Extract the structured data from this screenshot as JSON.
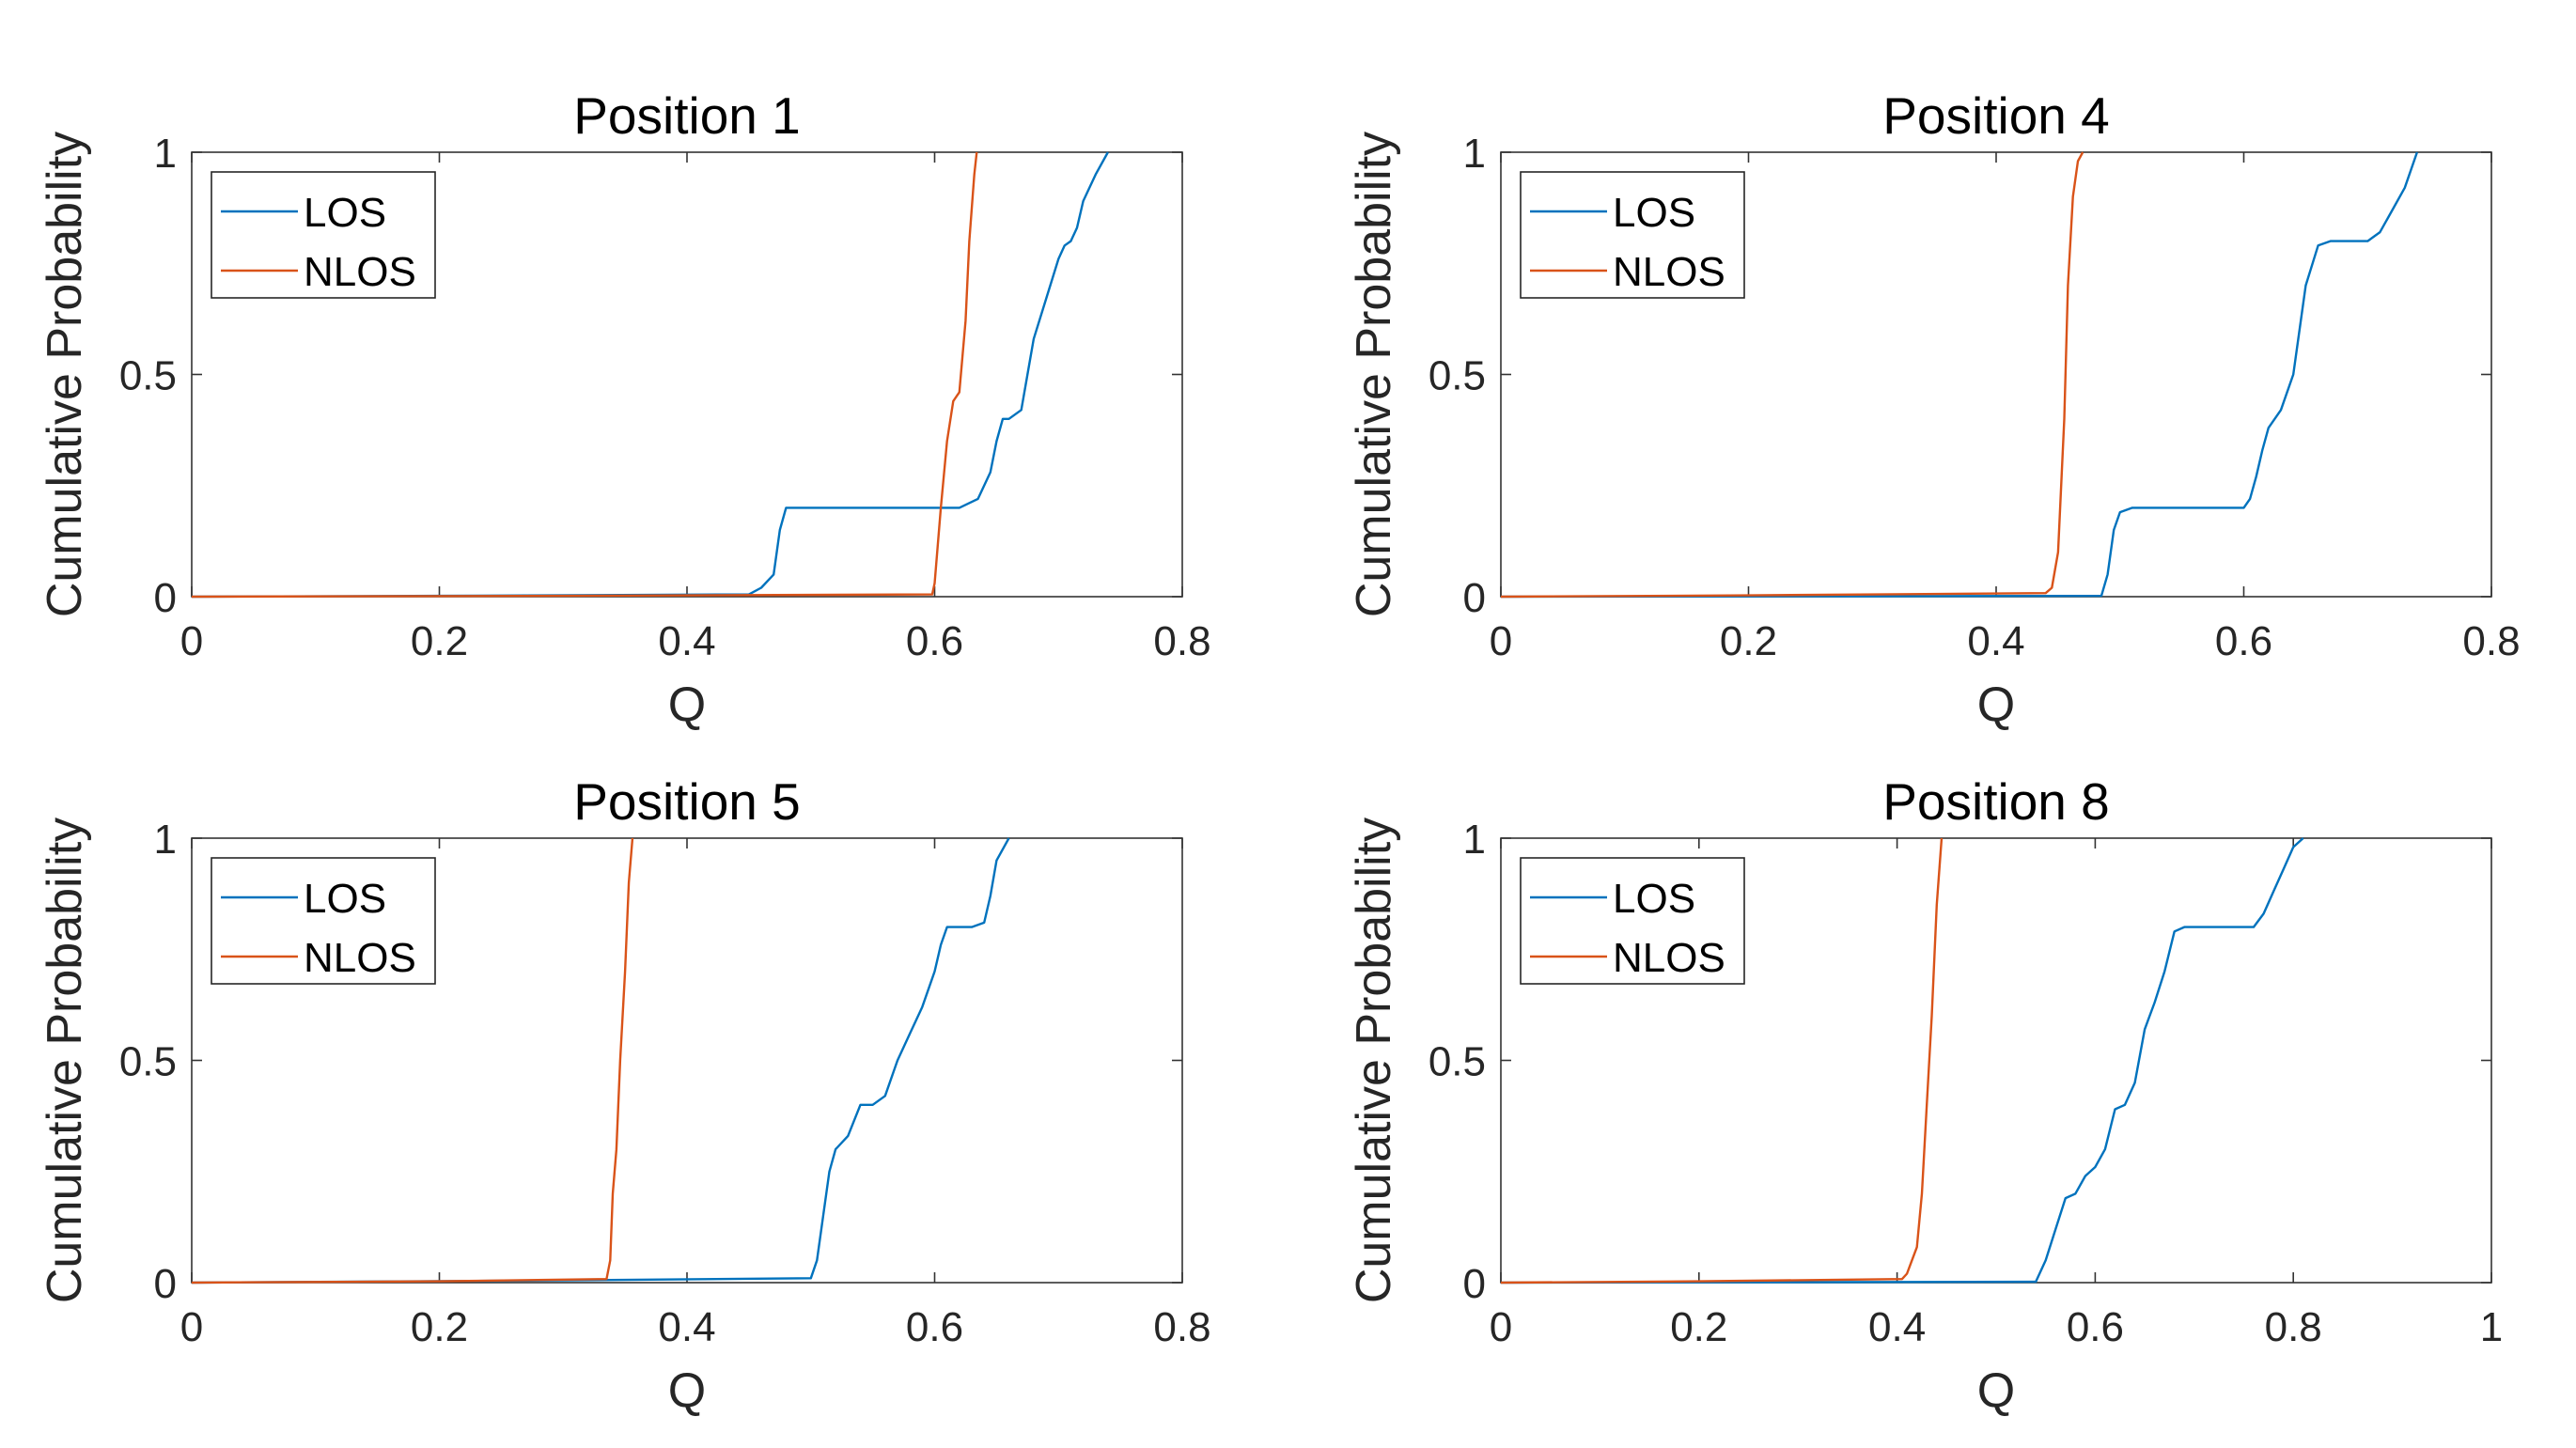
{
  "chart_data": [
    {
      "type": "line",
      "title": "Position 1",
      "xlabel": "Q",
      "ylabel": "Cumulative Probability",
      "xlim": [
        0,
        0.8
      ],
      "ylim": [
        0,
        1
      ],
      "xticks": [
        0,
        0.2,
        0.4,
        0.6,
        0.8
      ],
      "xtick_labels": [
        "0",
        "0.2",
        "0.4",
        "0.6",
        "0.8"
      ],
      "yticks": [
        0,
        0.5,
        1
      ],
      "ytick_labels": [
        "0",
        "0.5",
        "1"
      ],
      "legend_position": "top-left",
      "series": [
        {
          "name": "LOS",
          "color": "#0072BD",
          "x": [
            0,
            0.2,
            0.45,
            0.46,
            0.47,
            0.475,
            0.48,
            0.5,
            0.58,
            0.62,
            0.635,
            0.645,
            0.65,
            0.655,
            0.66,
            0.67,
            0.675,
            0.68,
            0.69,
            0.7,
            0.705,
            0.71,
            0.715,
            0.72,
            0.73,
            0.74
          ],
          "y": [
            0,
            0.002,
            0.005,
            0.02,
            0.05,
            0.15,
            0.2,
            0.2,
            0.2,
            0.2,
            0.22,
            0.28,
            0.35,
            0.4,
            0.4,
            0.42,
            0.5,
            0.58,
            0.67,
            0.76,
            0.79,
            0.8,
            0.83,
            0.89,
            0.95,
            1.0
          ]
        },
        {
          "name": "NLOS",
          "color": "#D95319",
          "x": [
            0,
            0.3,
            0.598,
            0.6,
            0.605,
            0.61,
            0.615,
            0.62,
            0.625,
            0.628,
            0.632,
            0.634
          ],
          "y": [
            0,
            0.002,
            0.005,
            0.03,
            0.2,
            0.35,
            0.44,
            0.46,
            0.62,
            0.8,
            0.95,
            1.0
          ]
        }
      ]
    },
    {
      "type": "line",
      "title": "Position 4",
      "xlabel": "Q",
      "ylabel": "Cumulative Probability",
      "xlim": [
        0,
        0.8
      ],
      "ylim": [
        0,
        1
      ],
      "xticks": [
        0,
        0.2,
        0.4,
        0.6,
        0.8
      ],
      "xtick_labels": [
        "0",
        "0.2",
        "0.4",
        "0.6",
        "0.8"
      ],
      "yticks": [
        0,
        0.5,
        1
      ],
      "ytick_labels": [
        "0",
        "0.5",
        "1"
      ],
      "legend_position": "top-left",
      "series": [
        {
          "name": "LOS",
          "color": "#0072BD",
          "x": [
            0,
            0.3,
            0.485,
            0.49,
            0.495,
            0.5,
            0.51,
            0.53,
            0.6,
            0.605,
            0.61,
            0.615,
            0.62,
            0.63,
            0.64,
            0.645,
            0.65,
            0.66,
            0.67,
            0.7,
            0.705,
            0.71,
            0.72,
            0.73,
            0.74
          ],
          "y": [
            0,
            0.001,
            0.002,
            0.05,
            0.15,
            0.19,
            0.2,
            0.2,
            0.2,
            0.22,
            0.27,
            0.33,
            0.38,
            0.42,
            0.5,
            0.6,
            0.7,
            0.79,
            0.8,
            0.8,
            0.81,
            0.82,
            0.87,
            0.92,
            1.0
          ]
        },
        {
          "name": "NLOS",
          "color": "#D95319",
          "x": [
            0,
            0.2,
            0.44,
            0.445,
            0.45,
            0.455,
            0.458,
            0.462,
            0.466,
            0.47
          ],
          "y": [
            0,
            0.003,
            0.008,
            0.02,
            0.1,
            0.4,
            0.7,
            0.9,
            0.98,
            1.0
          ]
        }
      ]
    },
    {
      "type": "line",
      "title": "Position 5",
      "xlabel": "Q",
      "ylabel": "Cumulative Probability",
      "xlim": [
        0,
        0.8
      ],
      "ylim": [
        0,
        1
      ],
      "xticks": [
        0,
        0.2,
        0.4,
        0.6,
        0.8
      ],
      "xtick_labels": [
        "0",
        "0.2",
        "0.4",
        "0.6",
        "0.8"
      ],
      "yticks": [
        0,
        0.5,
        1
      ],
      "ytick_labels": [
        "0",
        "0.5",
        "1"
      ],
      "legend_position": "top-left",
      "series": [
        {
          "name": "LOS",
          "color": "#0072BD",
          "x": [
            0,
            0.3,
            0.5,
            0.505,
            0.51,
            0.515,
            0.52,
            0.53,
            0.54,
            0.55,
            0.56,
            0.57,
            0.58,
            0.59,
            0.6,
            0.605,
            0.61,
            0.63,
            0.64,
            0.645,
            0.65,
            0.66
          ],
          "y": [
            0,
            0.005,
            0.01,
            0.05,
            0.15,
            0.25,
            0.3,
            0.33,
            0.4,
            0.4,
            0.42,
            0.5,
            0.56,
            0.62,
            0.7,
            0.76,
            0.8,
            0.8,
            0.81,
            0.87,
            0.95,
            1.0
          ]
        },
        {
          "name": "NLOS",
          "color": "#D95319",
          "x": [
            0,
            0.2,
            0.335,
            0.338,
            0.34,
            0.343,
            0.346,
            0.35,
            0.353,
            0.356
          ],
          "y": [
            0,
            0.003,
            0.008,
            0.05,
            0.2,
            0.3,
            0.5,
            0.7,
            0.9,
            1.0
          ]
        }
      ]
    },
    {
      "type": "line",
      "title": "Position 8",
      "xlabel": "Q",
      "ylabel": "Cumulative Probability",
      "xlim": [
        0,
        1
      ],
      "ylim": [
        0,
        1
      ],
      "xticks": [
        0,
        0.2,
        0.4,
        0.6,
        0.8,
        1
      ],
      "xtick_labels": [
        "0",
        "0.2",
        "0.4",
        "0.6",
        "0.8",
        "1"
      ],
      "yticks": [
        0,
        0.5,
        1
      ],
      "ytick_labels": [
        "0",
        "0.5",
        "1"
      ],
      "legend_position": "top-left",
      "series": [
        {
          "name": "LOS",
          "color": "#0072BD",
          "x": [
            0,
            0.3,
            0.54,
            0.55,
            0.56,
            0.57,
            0.58,
            0.59,
            0.6,
            0.61,
            0.62,
            0.63,
            0.64,
            0.65,
            0.66,
            0.67,
            0.68,
            0.69,
            0.7,
            0.76,
            0.77,
            0.78,
            0.79,
            0.8,
            0.81
          ],
          "y": [
            0,
            0.001,
            0.002,
            0.05,
            0.12,
            0.19,
            0.2,
            0.24,
            0.26,
            0.3,
            0.39,
            0.4,
            0.45,
            0.57,
            0.63,
            0.7,
            0.79,
            0.8,
            0.8,
            0.8,
            0.83,
            0.88,
            0.93,
            0.98,
            1.0
          ]
        },
        {
          "name": "NLOS",
          "color": "#D95319",
          "x": [
            0,
            0.2,
            0.405,
            0.41,
            0.415,
            0.42,
            0.425,
            0.43,
            0.435,
            0.44,
            0.445
          ],
          "y": [
            0,
            0.003,
            0.008,
            0.02,
            0.05,
            0.08,
            0.2,
            0.4,
            0.6,
            0.85,
            1.0
          ]
        }
      ]
    }
  ]
}
